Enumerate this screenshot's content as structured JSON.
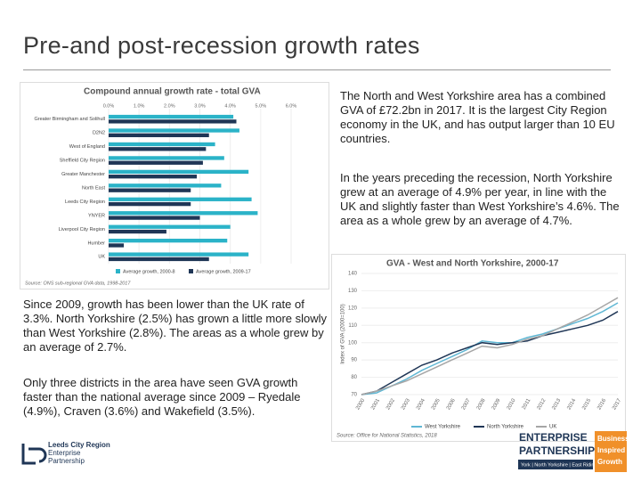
{
  "slide": {
    "title": "Pre-and post-recession growth rates",
    "paragraphs": [
      "The North and West Yorkshire area has a combined GVA of £72.2bn in 2017. It is the largest City Region economy in the UK, and has output larger than 10 EU countries.",
      "In the years preceding the recession, North Yorkshire grew at an average of 4.9% per year, in line with the UK and slightly faster than West Yorkshire’s 4.6%. The area as a whole grew by an average of 4.7%.",
      "Since 2009, growth has been lower than the UK rate of 3.3%. North Yorkshire (2.5%) has grown a little more slowly than West Yorkshire (2.8%). The areas as a whole grew by an average of 2.7%.",
      "Only three districts in the area have seen GVA growth faster than the national average since 2009 – Ryedale (4.9%), Craven (3.6%) and Wakefield (3.5%)."
    ],
    "logo_left": [
      "Leeds City Region",
      "Enterprise",
      "Partnership"
    ],
    "logo_right": [
      "ENTERPRISE",
      "PARTNERSHIP",
      "Business",
      "Inspired",
      "Growth",
      "York | North Yorkshire | East Riding"
    ]
  },
  "chart_data": [
    {
      "type": "hbar",
      "title": "Compound annual growth rate - total GVA",
      "categories": [
        "Greater Birmingham and Solihull",
        "D2N2",
        "West of England",
        "Sheffield City Region",
        "Greater Manchester",
        "North East",
        "Leeds City Region",
        "YNYER",
        "Liverpool City Region",
        "Humber",
        "UK"
      ],
      "series": [
        {
          "name": "Average growth, 2000-8",
          "color": "#2bb3c8",
          "values": [
            4.1,
            4.3,
            3.5,
            3.8,
            4.6,
            3.7,
            4.7,
            4.9,
            4.0,
            3.9,
            4.6
          ]
        },
        {
          "name": "Average growth, 2009-17",
          "color": "#1f3656",
          "values": [
            4.2,
            3.3,
            3.2,
            3.1,
            2.9,
            2.7,
            2.7,
            3.0,
            1.9,
            0.5,
            3.3
          ]
        }
      ],
      "xlim": [
        0,
        6
      ],
      "xticks": [
        {
          "value": 0,
          "label": "0.0%"
        },
        {
          "value": 1,
          "label": "1.0%"
        },
        {
          "value": 2,
          "label": "2.0%"
        },
        {
          "value": 3,
          "label": "3.0%"
        },
        {
          "value": 4,
          "label": "4.0%"
        },
        {
          "value": 5,
          "label": "5.0%"
        },
        {
          "value": 6,
          "label": "6.0%"
        }
      ],
      "source": "Source: ONS sub-regional GVA data, 1998-2017"
    },
    {
      "type": "line",
      "title": "GVA - West and North Yorkshire, 2000-17",
      "y_label": "Index of GVA (2000=100)",
      "x": [
        2000,
        2001,
        2002,
        2003,
        2004,
        2005,
        2006,
        2007,
        2008,
        2009,
        2010,
        2011,
        2012,
        2013,
        2014,
        2015,
        2016,
        2017
      ],
      "xlim": [
        2000,
        2017
      ],
      "series": [
        {
          "name": "West Yorkshire",
          "color": "#5fb7d4",
          "values": [
            70,
            71,
            75,
            79,
            84,
            88,
            92,
            96,
            101,
            100,
            100,
            103,
            105,
            108,
            111,
            114,
            118,
            123
          ]
        },
        {
          "name": "North Yorkshire",
          "color": "#1f3656",
          "values": [
            70,
            72,
            77,
            82,
            87,
            90,
            94,
            97,
            100,
            99,
            100,
            101,
            104,
            106,
            108,
            110,
            113,
            118
          ]
        },
        {
          "name": "UK",
          "color": "#a6a6a6",
          "values": [
            70,
            72,
            75,
            78,
            82,
            86,
            90,
            94,
            98,
            97,
            99,
            102,
            104,
            108,
            112,
            116,
            121,
            126
          ]
        }
      ],
      "ylim": [
        70,
        140
      ],
      "yticks": [
        70,
        80,
        90,
        100,
        110,
        120,
        130,
        140
      ],
      "grid": true,
      "source": "Source: Office for National Statistics, 2018"
    }
  ]
}
